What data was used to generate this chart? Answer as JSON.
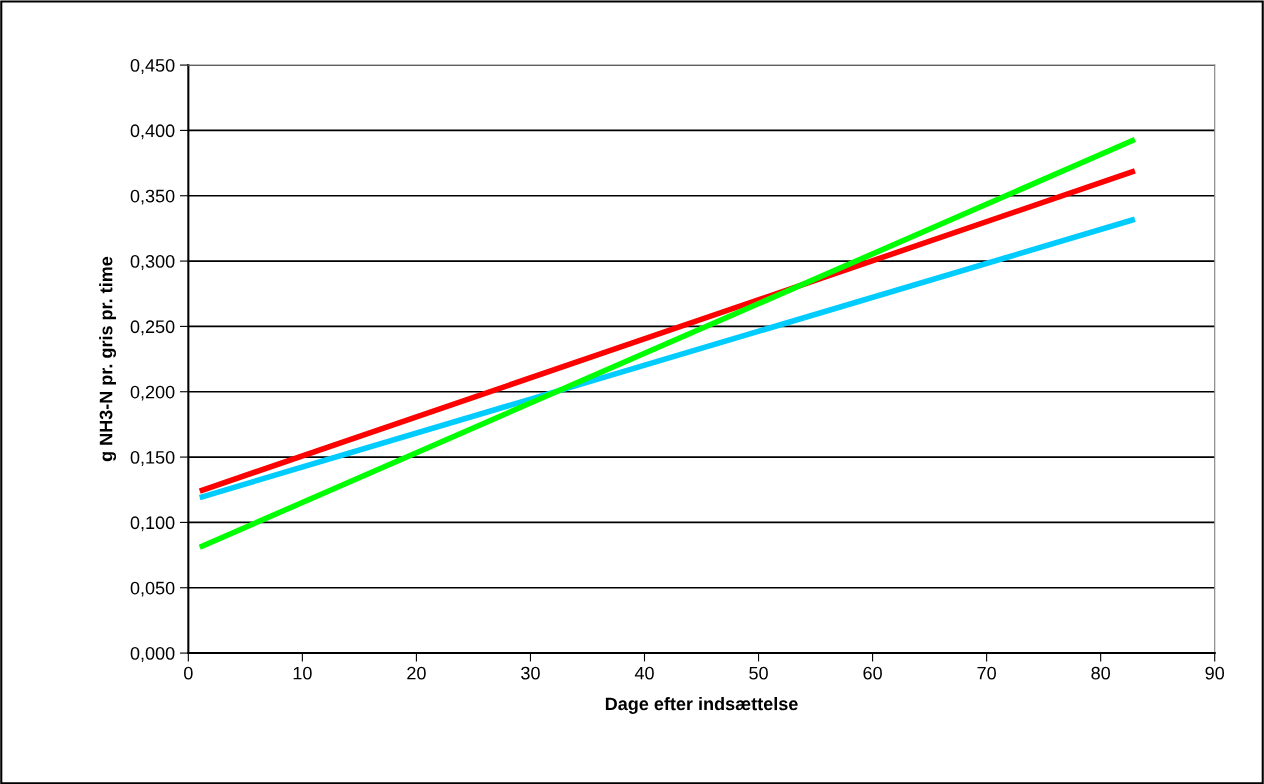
{
  "chart_data": {
    "type": "line",
    "xlabel": "Dage efter indsættelse",
    "ylabel": "g NH3-N pr. gris pr. time",
    "xlim": [
      0,
      90
    ],
    "xticks": [
      0,
      10,
      20,
      30,
      40,
      50,
      60,
      70,
      80,
      90
    ],
    "ylim": [
      0,
      0.45
    ],
    "yticks": [
      {
        "value": 0,
        "label": "0,000"
      },
      {
        "value": 0.05,
        "label": "0,050"
      },
      {
        "value": 0.1,
        "label": "0,100"
      },
      {
        "value": 0.15,
        "label": "0,150"
      },
      {
        "value": 0.2,
        "label": "0,200"
      },
      {
        "value": 0.25,
        "label": "0,250"
      },
      {
        "value": 0.3,
        "label": "0,300"
      },
      {
        "value": 0.35,
        "label": "0,350"
      },
      {
        "value": 0.4,
        "label": "0,400"
      },
      {
        "value": 0.45,
        "label": "0,450"
      }
    ],
    "grid": "y",
    "marker": "none",
    "line_style": "solid",
    "x": [
      1,
      83
    ],
    "series": [
      {
        "color": "#ff0000",
        "values": [
          0.124,
          0.369
        ]
      },
      {
        "color": "#00ccff",
        "values": [
          0.119,
          0.332
        ]
      },
      {
        "color": "#00ff00",
        "values": [
          0.081,
          0.393
        ]
      }
    ]
  }
}
